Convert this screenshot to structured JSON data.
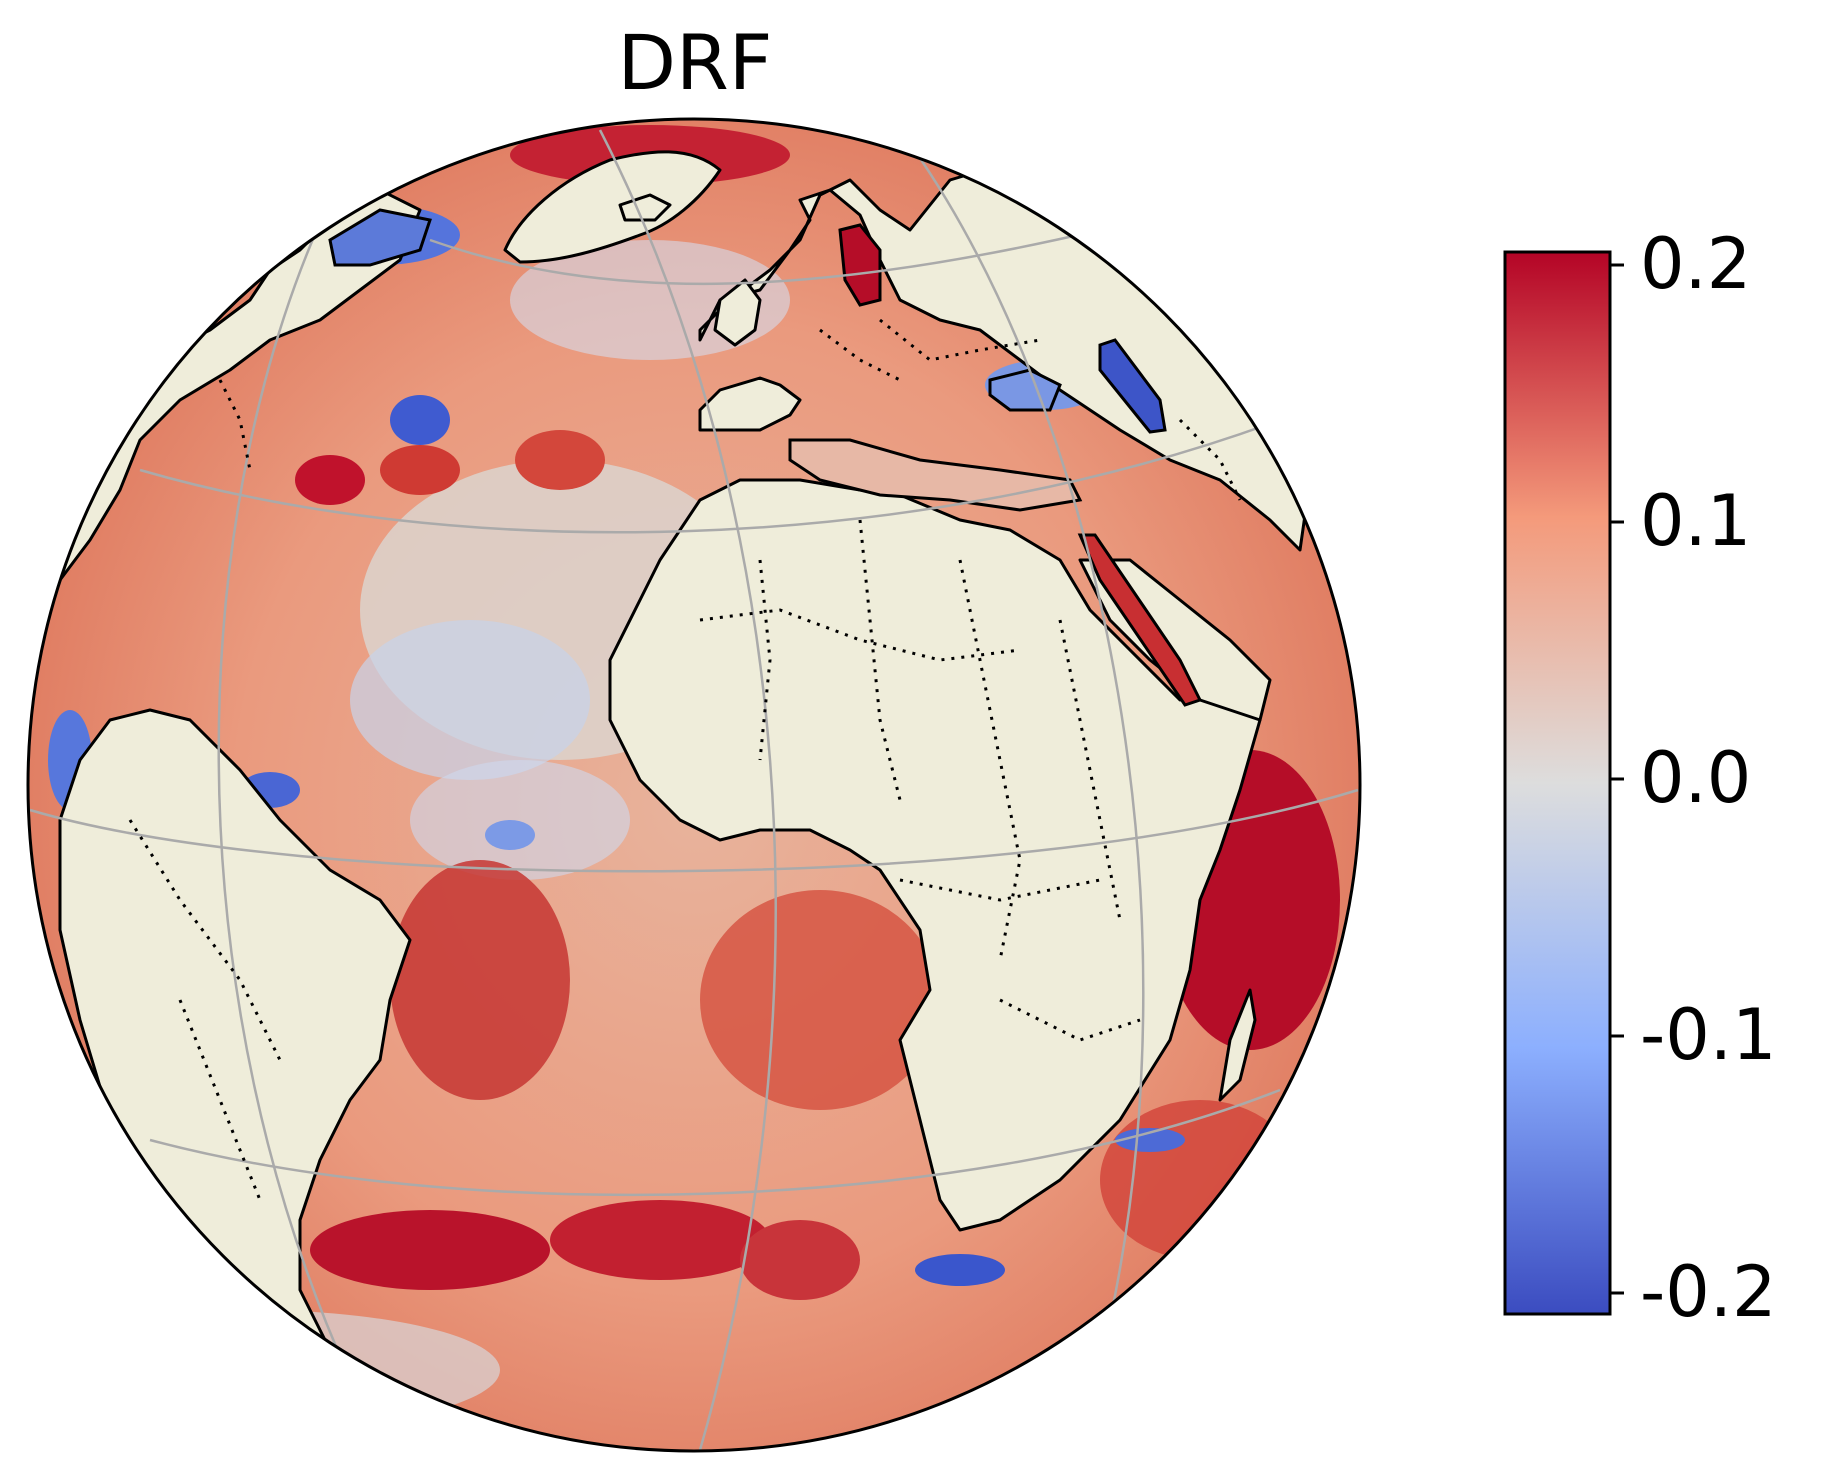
{
  "title": "DRF",
  "colorbar": {
    "colormap": "coolwarm",
    "min": -0.2,
    "max": 0.2,
    "ticks": [
      {
        "value": 0.2,
        "label": "0.2"
      },
      {
        "value": 0.1,
        "label": "0.1"
      },
      {
        "value": 0.0,
        "label": "0.0"
      },
      {
        "value": -0.1,
        "label": "-0.1"
      },
      {
        "value": -0.2,
        "label": "-0.2"
      }
    ],
    "colors": {
      "low": "#3b4cc0",
      "mid": "#dddddd",
      "high": "#b40426"
    }
  },
  "map": {
    "projection": "orthographic",
    "center": "Atlantic Ocean",
    "land_color": "#efedda",
    "gridline_color": "#aaaaaa",
    "coastline_color": "#000000",
    "borders_style": "dotted"
  }
}
